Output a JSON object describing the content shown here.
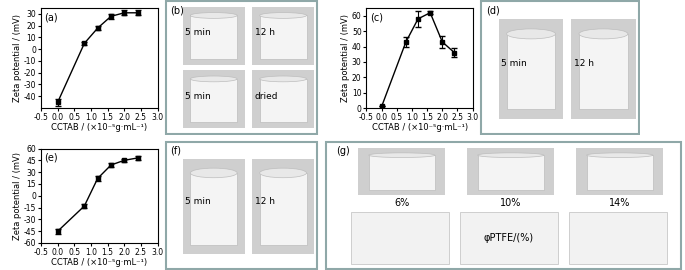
{
  "chart_data": [
    {
      "type": "line",
      "title": "(a)",
      "x_label": "CCTAB / (×10⁻⁵g·mL⁻¹)",
      "y_label": "Zeta potential / (mV)",
      "x": [
        0,
        0.8,
        1.2,
        1.6,
        2.0,
        2.4
      ],
      "values": [
        -45,
        5,
        18,
        28,
        31,
        31
      ],
      "errors": [
        3,
        1,
        2,
        2,
        2,
        2
      ],
      "xlim": [
        -0.5,
        3.0
      ],
      "xticks": [
        -0.5,
        0.0,
        0.5,
        1.0,
        1.5,
        2.0,
        2.5,
        3.0
      ],
      "ylim": [
        -50,
        35
      ],
      "yticks": [
        -40,
        -30,
        -20,
        -10,
        0,
        10,
        20,
        30
      ],
      "color": "#000000",
      "marker": "s",
      "line_style": "solid"
    },
    {
      "type": "line",
      "title": "(c)",
      "x_label": "CCTAB / (×10⁻⁵g·mL⁻¹)",
      "y_label": "Zeta potential / (mV)",
      "x": [
        0,
        0.8,
        1.2,
        1.6,
        2.0,
        2.4
      ],
      "values": [
        1,
        43,
        58,
        62,
        43,
        36
      ],
      "errors": [
        0,
        3,
        5,
        1,
        4,
        3
      ],
      "xlim": [
        -0.5,
        3.0
      ],
      "xticks": [
        -0.5,
        0.0,
        0.5,
        1.0,
        1.5,
        2.0,
        2.5,
        3.0
      ],
      "ylim": [
        0,
        65
      ],
      "yticks": [
        0,
        10,
        20,
        30,
        40,
        50,
        60
      ],
      "color": "#000000",
      "marker": "s",
      "line_style": "solid"
    },
    {
      "type": "line",
      "title": "(e)",
      "x_label": "CCTAB / (×10⁻⁵g·mL⁻¹)",
      "y_label": "Zeta potential / (mV)",
      "x": [
        0,
        0.8,
        1.2,
        1.6,
        2.0,
        2.4
      ],
      "values": [
        -45,
        -13,
        22,
        39,
        45,
        48
      ],
      "errors": [
        3,
        2,
        3,
        2,
        2,
        2
      ],
      "xlim": [
        -0.5,
        3.0
      ],
      "xticks": [
        -0.5,
        0.0,
        0.5,
        1.0,
        1.5,
        2.0,
        2.5,
        3.0
      ],
      "ylim": [
        -60,
        60
      ],
      "yticks": [
        -60,
        -45,
        -30,
        -15,
        0,
        15,
        30,
        45,
        60
      ],
      "color": "#000000",
      "marker": "s",
      "line_style": "solid"
    }
  ],
  "photo_panels": [
    {
      "label": "(b)",
      "photos": [
        "5 min",
        "12 h",
        "5 min",
        "dried"
      ]
    },
    {
      "label": "(d)",
      "photos": [
        "5 min",
        "12 h"
      ]
    },
    {
      "label": "(f)",
      "photos": [
        "5 min",
        "12 h"
      ]
    },
    {
      "label": "(g)",
      "captions": [
        "6%",
        "10%",
        "14%"
      ],
      "axis_label": "φPTFE/(%)"
    }
  ]
}
